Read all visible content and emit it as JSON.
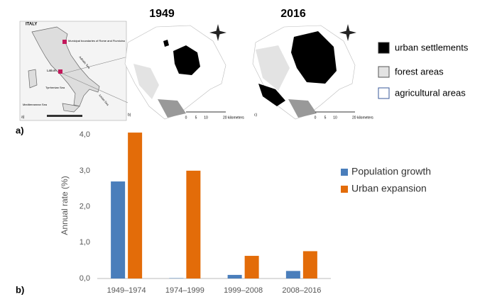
{
  "figure": {
    "panel_a_label": "a)",
    "panel_b_label": "b)",
    "maps": {
      "years": [
        "1949",
        "2016"
      ],
      "inset": {
        "country": "ITALY",
        "box_legend": "Municipal boundaries of Rome and Fiumicino",
        "region": "Latium",
        "seas": [
          "Adriatic Sea",
          "Tyrrhenian Sea",
          "Ionian Sea",
          "Mediterranean Sea"
        ]
      },
      "sub_labels": [
        "a)",
        "b)",
        "c)"
      ],
      "scale_labels": [
        "0",
        "5",
        "10",
        "20 kilometers"
      ],
      "legend": [
        "urban settlements",
        "forest areas",
        "agricultural areas"
      ]
    }
  },
  "chart_data": {
    "type": "bar",
    "y_label": "Annual rate (%)",
    "categories": [
      "1949–1974",
      "1974–1999",
      "1999–2008",
      "2008–2016"
    ],
    "series": [
      {
        "name": "Population growth",
        "color": "#4a7ebb",
        "values": [
          2.7,
          0.01,
          0.1,
          0.21
        ]
      },
      {
        "name": "Urban expansion",
        "color": "#e36c09",
        "values": [
          4.06,
          3.0,
          0.63,
          0.76
        ]
      }
    ],
    "ylim": [
      0,
      4.2
    ],
    "yticks": [
      {
        "value": 0,
        "label": "0,0"
      },
      {
        "value": 1,
        "label": "1,0"
      },
      {
        "value": 2,
        "label": "2,0"
      },
      {
        "value": 3,
        "label": "3,0"
      },
      {
        "value": 4,
        "label": "4,0"
      }
    ],
    "grid": false
  }
}
